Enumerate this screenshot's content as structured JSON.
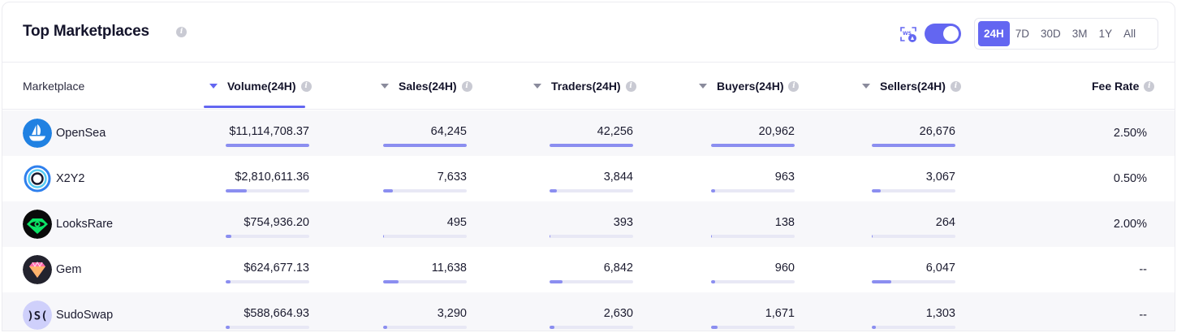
{
  "title": "Top Marketplaces",
  "colors": {
    "accent": "#6366f1",
    "bar_fill": "#8b8ef0",
    "bar_track": "#e8e8f5"
  },
  "header_controls": {
    "ws_icon": "websocket-live-icon",
    "toggle_on": true,
    "ranges": [
      "24H",
      "7D",
      "30D",
      "3M",
      "1Y",
      "All"
    ],
    "active_range": "24H"
  },
  "columns": {
    "marketplace": "Marketplace",
    "volume": "Volume(24H)",
    "sales": "Sales(24H)",
    "traders": "Traders(24H)",
    "buyers": "Buyers(24H)",
    "sellers": "Sellers(24H)",
    "fee": "Fee Rate"
  },
  "rows": [
    {
      "name": "OpenSea",
      "logo": "opensea-logo-icon",
      "volume": "$11,114,708.37",
      "sales": "64,245",
      "traders": "42,256",
      "buyers": "20,962",
      "sellers": "26,676",
      "fee": "2.50%",
      "fills": {
        "volume": 1.0,
        "sales": 1.0,
        "traders": 1.0,
        "buyers": 1.0,
        "sellers": 1.0
      }
    },
    {
      "name": "X2Y2",
      "logo": "x2y2-logo-icon",
      "volume": "$2,810,611.36",
      "sales": "7,633",
      "traders": "3,844",
      "buyers": "963",
      "sellers": "3,067",
      "fee": "0.50%",
      "fills": {
        "volume": 0.25,
        "sales": 0.12,
        "traders": 0.09,
        "buyers": 0.05,
        "sellers": 0.11
      }
    },
    {
      "name": "LooksRare",
      "logo": "looksrare-logo-icon",
      "volume": "$754,936.20",
      "sales": "495",
      "traders": "393",
      "buyers": "138",
      "sellers": "264",
      "fee": "2.00%",
      "fills": {
        "volume": 0.07,
        "sales": 0.01,
        "traders": 0.01,
        "buyers": 0.01,
        "sellers": 0.01
      }
    },
    {
      "name": "Gem",
      "logo": "gem-logo-icon",
      "volume": "$624,677.13",
      "sales": "11,638",
      "traders": "6,842",
      "buyers": "960",
      "sellers": "6,047",
      "fee": "--",
      "fills": {
        "volume": 0.06,
        "sales": 0.18,
        "traders": 0.16,
        "buyers": 0.05,
        "sellers": 0.23
      }
    },
    {
      "name": "SudoSwap",
      "logo": "sudoswap-logo-icon",
      "volume": "$588,664.93",
      "sales": "3,290",
      "traders": "2,630",
      "buyers": "1,671",
      "sellers": "1,303",
      "fee": "--",
      "fills": {
        "volume": 0.05,
        "sales": 0.05,
        "traders": 0.06,
        "buyers": 0.08,
        "sellers": 0.05
      }
    }
  ]
}
